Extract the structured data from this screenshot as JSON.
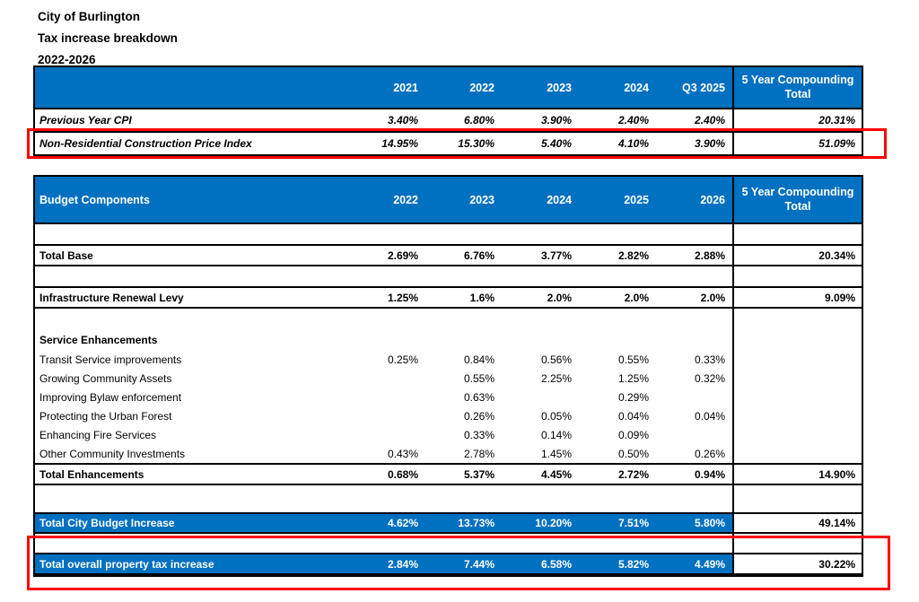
{
  "titles": [
    "City of Burlington",
    "Tax increase breakdown",
    "2022-2026"
  ],
  "colors": {
    "header_blue": "#0070C0",
    "annotation_red": "#FF0000"
  },
  "table1": {
    "rows": [
      {
        "kind": "t1header",
        "name": "cpi-table-header",
        "label": "",
        "years": [
          "2021",
          "2022",
          "2023",
          "2024",
          "Q3 2025"
        ],
        "total": "5 Year Compounding Total"
      },
      {
        "kind": "t1data",
        "name": "row-previous-year-cpi",
        "label": "Previous Year CPI",
        "years": [
          "3.40%",
          "6.80%",
          "3.90%",
          "2.40%",
          "2.40%"
        ],
        "total": "20.31%"
      },
      {
        "kind": "t1data",
        "name": "row-non-residential-construction-price-index",
        "label": "Non-Residential Construction Price Index",
        "years": [
          "14.95%",
          "15.30%",
          "5.40%",
          "4.10%",
          "3.90%"
        ],
        "total": "51.09%"
      }
    ]
  },
  "table2": {
    "rows": [
      {
        "kind": "t2header",
        "name": "budget-table-header",
        "label": "Budget  Components",
        "years": [
          "2022",
          "2023",
          "2024",
          "2025",
          "2026"
        ],
        "total": "5 Year Compounding Total"
      },
      {
        "kind": "spacer",
        "name": "spacer-row"
      },
      {
        "kind": "total",
        "name": "row-total-base",
        "label": "Total Base",
        "years": [
          "2.69%",
          "6.76%",
          "3.77%",
          "2.82%",
          "2.88%"
        ],
        "total": "20.34%"
      },
      {
        "kind": "spacer",
        "name": "spacer-row"
      },
      {
        "kind": "total",
        "name": "row-infrastructure-renewal-levy",
        "label": "Infrastructure Renewal Levy",
        "years": [
          "1.25%",
          "1.6%",
          "2.0%",
          "2.0%",
          "2.0%"
        ],
        "total": "9.09%"
      },
      {
        "kind": "spacer",
        "name": "spacer-row"
      },
      {
        "kind": "section",
        "name": "row-service-enhancements",
        "label": "Service Enhancements",
        "years": [
          "",
          "",
          "",
          "",
          ""
        ],
        "total": ""
      },
      {
        "kind": "item",
        "name": "row-transit-service-improvements",
        "label": "Transit Service improvements",
        "years": [
          "0.25%",
          "0.84%",
          "0.56%",
          "0.55%",
          "0.33%"
        ],
        "total": ""
      },
      {
        "kind": "item",
        "name": "row-growing-community-assets",
        "label": "Growing Community Assets",
        "years": [
          "",
          "0.55%",
          "2.25%",
          "1.25%",
          "0.32%"
        ],
        "total": ""
      },
      {
        "kind": "item",
        "name": "row-improving-bylaw-enforcement",
        "label": "Improving Bylaw enforcement",
        "years": [
          "",
          "0.63%",
          "",
          "0.29%",
          ""
        ],
        "total": ""
      },
      {
        "kind": "item",
        "name": "row-protecting-the-urban-forest",
        "label": "Protecting  the Urban Forest",
        "years": [
          "",
          "0.26%",
          "0.05%",
          "0.04%",
          "0.04%"
        ],
        "total": ""
      },
      {
        "kind": "item",
        "name": "row-enhancing-fire-services",
        "label": "Enhancing  Fire Services",
        "years": [
          "",
          "0.33%",
          "0.14%",
          "0.09%",
          ""
        ],
        "total": ""
      },
      {
        "kind": "item",
        "name": "row-other-community-investments",
        "label": "Other Community Investments",
        "years": [
          "0.43%",
          "2.78%",
          "1.45%",
          "0.50%",
          "0.26%"
        ],
        "total": ""
      },
      {
        "kind": "total",
        "name": "row-total-enhancements",
        "label": "Total Enhancements",
        "years": [
          "0.68%",
          "5.37%",
          "4.45%",
          "2.72%",
          "0.94%"
        ],
        "total": "14.90%"
      },
      {
        "kind": "spacer",
        "name": "spacer-row"
      },
      {
        "kind": "bluetotal",
        "name": "row-total-city-budget-increase",
        "label": "Total City Budget Increase",
        "years": [
          "4.62%",
          "13.73%",
          "10.20%",
          "7.51%",
          "5.80%"
        ],
        "total": "49.14%"
      },
      {
        "kind": "spacer",
        "name": "spacer-row"
      },
      {
        "kind": "bluetotal",
        "name": "row-total-overall-property-tax-increase",
        "label": "Total overall property tax increase",
        "years": [
          "2.84%",
          "7.44%",
          "6.58%",
          "5.82%",
          "4.49%"
        ],
        "total": "30.22%"
      }
    ]
  }
}
